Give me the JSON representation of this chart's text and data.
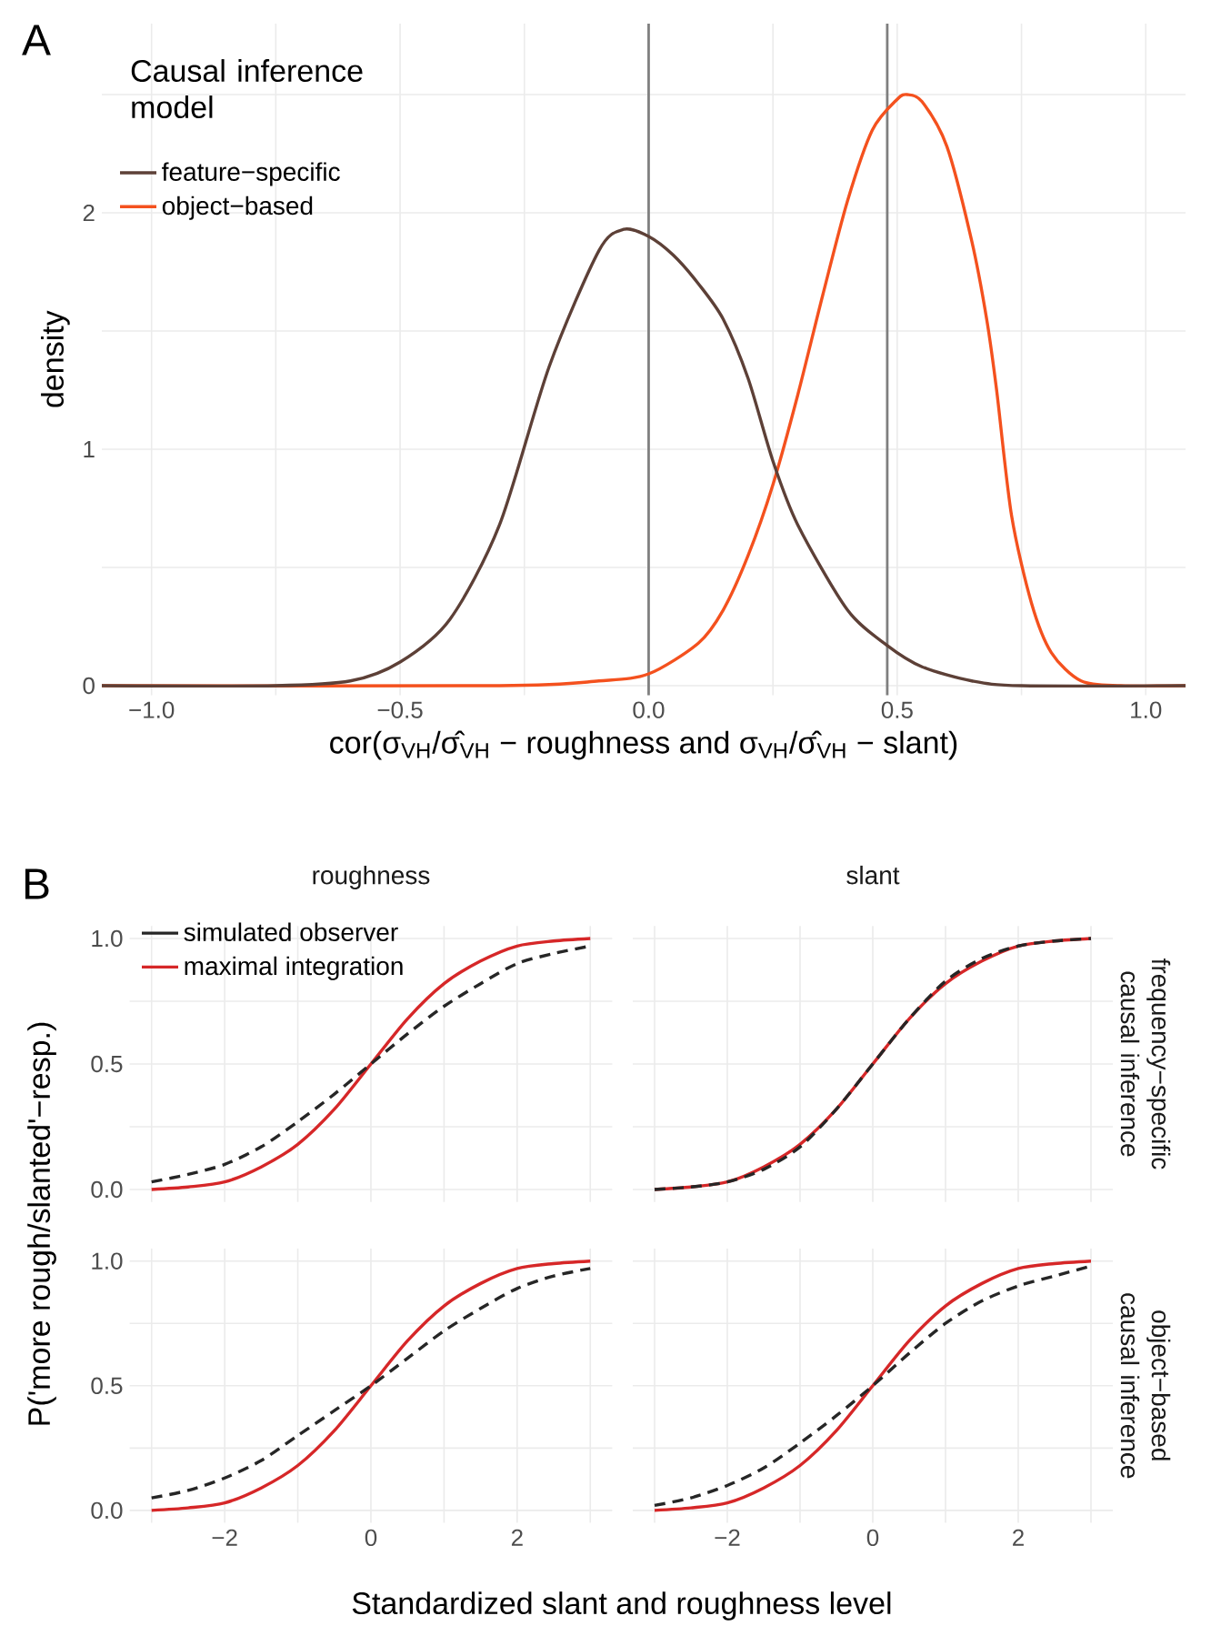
{
  "chart_data": [
    {
      "type": "line",
      "annotations": [
        "A"
      ],
      "xlabel": "cor(σ$_{VH}$/σ̂$_{VH}$  − roughness and σ$_{VH}$/σ̂$_{VH}$  − slant)",
      "ylabel": "density",
      "legend_title": "Causal inference model",
      "legend": "top left",
      "grid": true,
      "xlim": [
        -1.1,
        1.08
      ],
      "ylim": [
        -0.04,
        2.8
      ],
      "xticks": [
        {
          "value": -1,
          "label": "−1.0"
        },
        {
          "value": -0.75,
          "label": null
        },
        {
          "value": -0.5,
          "label": "−0.5"
        },
        {
          "value": -0.25,
          "label": null
        },
        {
          "value": 0,
          "label": "0.0"
        },
        {
          "value": 0.25,
          "label": null
        },
        {
          "value": 0.5,
          "label": "0.5"
        },
        {
          "value": 0.75,
          "label": null
        },
        {
          "value": 1,
          "label": "1.0"
        }
      ],
      "yticks": [
        0,
        {
          "value": 0.5,
          "label": null
        },
        1,
        {
          "value": 1.5,
          "label": null
        },
        2,
        {
          "value": 2.5,
          "label": null
        }
      ],
      "ref_lines": [
        {
          "axis": "x",
          "value": 0,
          "color": "#7f7f7f"
        },
        {
          "axis": "x",
          "value": 0.48,
          "color": "#7f7f7f"
        }
      ],
      "series": [
        {
          "name": "feature−specific",
          "color": "#5d4037",
          "x": [
            -1.1,
            -0.75,
            -0.6,
            -0.5,
            -0.4,
            -0.3,
            -0.2,
            -0.1,
            -0.05,
            0,
            0.05,
            0.1,
            0.15,
            0.2,
            0.25,
            0.3,
            0.4,
            0.48,
            0.55,
            0.65,
            0.75,
            1.08
          ],
          "values": [
            0,
            0,
            0.02,
            0.1,
            0.28,
            0.68,
            1.35,
            1.84,
            1.93,
            1.9,
            1.82,
            1.7,
            1.55,
            1.3,
            0.95,
            0.68,
            0.32,
            0.17,
            0.08,
            0.02,
            0,
            0
          ]
        },
        {
          "name": "object−based",
          "color": "#f4511e",
          "x": [
            -1.1,
            -0.3,
            -0.1,
            0,
            0.1,
            0.15,
            0.2,
            0.25,
            0.3,
            0.35,
            0.4,
            0.45,
            0.5,
            0.52,
            0.55,
            0.6,
            0.65,
            0.68,
            0.7,
            0.73,
            0.77,
            0.81,
            0.87,
            0.95,
            1.08
          ],
          "values": [
            0,
            0,
            0.02,
            0.05,
            0.18,
            0.32,
            0.55,
            0.85,
            1.23,
            1.65,
            2.05,
            2.35,
            2.48,
            2.5,
            2.47,
            2.28,
            1.88,
            1.55,
            1.25,
            0.72,
            0.35,
            0.14,
            0.02,
            0,
            0
          ]
        }
      ]
    },
    {
      "type": "line",
      "annotations": [
        "B"
      ],
      "title": "roughness",
      "ylabel": "P('more rough/slanted'−resp.)",
      "legend": "top left",
      "grid": true,
      "tick_labels": "y",
      "xlim": [
        -3.3,
        3.3
      ],
      "ylim": [
        -0.05,
        1.05
      ],
      "xticks": [
        {
          "value": -3,
          "label": null
        },
        {
          "value": -2,
          "label": null
        },
        {
          "value": -1,
          "label": null
        },
        {
          "value": 0,
          "label": null
        },
        {
          "value": 1,
          "label": null
        },
        {
          "value": 2,
          "label": null
        },
        {
          "value": 3,
          "label": null
        }
      ],
      "yticks": [
        {
          "value": 0,
          "label": "0.0"
        },
        {
          "value": 0.25,
          "label": null
        },
        {
          "value": 0.5,
          "label": "0.5"
        },
        {
          "value": 0.75,
          "label": null
        },
        {
          "value": 1,
          "label": "1.0"
        }
      ],
      "x": [
        -3,
        -2.5,
        -2,
        -1.5,
        -1,
        -0.5,
        0,
        0.5,
        1,
        1.5,
        2,
        2.5,
        3
      ],
      "series": [
        {
          "name": "simulated observer",
          "color": "#262626",
          "line_style": "dashed",
          "values": [
            0.03,
            0.06,
            0.1,
            0.17,
            0.27,
            0.38,
            0.5,
            0.62,
            0.73,
            0.82,
            0.9,
            0.94,
            0.97
          ]
        },
        {
          "name": "maximal integration",
          "color": "#d62728",
          "values": [
            0.0,
            0.01,
            0.03,
            0.09,
            0.18,
            0.32,
            0.5,
            0.68,
            0.82,
            0.91,
            0.97,
            0.99,
            1.0
          ]
        }
      ]
    },
    {
      "type": "line",
      "title": "slant",
      "y2label": "frequency−specific causal inference",
      "grid": true,
      "tick_labels": false,
      "xlim": [
        -3.3,
        3.3
      ],
      "ylim": [
        -0.05,
        1.05
      ],
      "xticks": [
        {
          "value": -3,
          "label": null
        },
        {
          "value": -2,
          "label": null
        },
        {
          "value": -1,
          "label": null
        },
        {
          "value": 0,
          "label": null
        },
        {
          "value": 1,
          "label": null
        },
        {
          "value": 2,
          "label": null
        },
        {
          "value": 3,
          "label": null
        }
      ],
      "yticks": [
        {
          "value": 0,
          "label": null
        },
        {
          "value": 0.25,
          "label": null
        },
        {
          "value": 0.5,
          "label": null
        },
        {
          "value": 0.75,
          "label": null
        },
        {
          "value": 1,
          "label": null
        }
      ],
      "x": [
        -3,
        -2.5,
        -2,
        -1.5,
        -1,
        -0.5,
        0,
        0.5,
        1,
        1.5,
        2,
        2.5,
        3
      ],
      "series": [
        {
          "color": "#262626",
          "line_style": "dashed",
          "values": [
            0.0,
            0.01,
            0.03,
            0.08,
            0.17,
            0.32,
            0.5,
            0.68,
            0.83,
            0.92,
            0.97,
            0.99,
            1.0
          ]
        },
        {
          "color": "#d62728",
          "values": [
            0.0,
            0.01,
            0.03,
            0.09,
            0.18,
            0.32,
            0.5,
            0.68,
            0.82,
            0.91,
            0.97,
            0.99,
            1.0
          ]
        }
      ]
    },
    {
      "type": "line",
      "xlabel": "Standardized slant and roughness level",
      "grid": true,
      "xlim": [
        -3.3,
        3.3
      ],
      "ylim": [
        -0.05,
        1.05
      ],
      "xticks": [
        {
          "value": -3,
          "label": null
        },
        {
          "value": -2,
          "label": "−2"
        },
        {
          "value": -1,
          "label": null
        },
        0,
        {
          "value": 1,
          "label": null
        },
        2,
        {
          "value": 3,
          "label": null
        }
      ],
      "yticks": [
        {
          "value": 0,
          "label": "0.0"
        },
        {
          "value": 0.25,
          "label": null
        },
        {
          "value": 0.5,
          "label": "0.5"
        },
        {
          "value": 0.75,
          "label": null
        },
        {
          "value": 1,
          "label": "1.0"
        }
      ],
      "x": [
        -3,
        -2.5,
        -2,
        -1.5,
        -1,
        -0.5,
        0,
        0.5,
        1,
        1.5,
        2,
        2.5,
        3
      ],
      "series": [
        {
          "color": "#262626",
          "line_style": "dashed",
          "values": [
            0.05,
            0.08,
            0.13,
            0.2,
            0.3,
            0.4,
            0.5,
            0.61,
            0.72,
            0.81,
            0.89,
            0.94,
            0.97
          ]
        },
        {
          "color": "#d62728",
          "values": [
            0.0,
            0.01,
            0.03,
            0.09,
            0.18,
            0.32,
            0.5,
            0.68,
            0.82,
            0.91,
            0.97,
            0.99,
            1.0
          ]
        }
      ]
    },
    {
      "type": "line",
      "y2label": "object−based causal inference",
      "grid": true,
      "tick_labels": "x",
      "xlim": [
        -3.3,
        3.3
      ],
      "ylim": [
        -0.05,
        1.05
      ],
      "xticks": [
        {
          "value": -3,
          "label": null
        },
        {
          "value": -2,
          "label": "−2"
        },
        {
          "value": -1,
          "label": null
        },
        0,
        {
          "value": 1,
          "label": null
        },
        2,
        {
          "value": 3,
          "label": null
        }
      ],
      "yticks": [
        {
          "value": 0,
          "label": null
        },
        {
          "value": 0.25,
          "label": null
        },
        {
          "value": 0.5,
          "label": null
        },
        {
          "value": 0.75,
          "label": null
        },
        {
          "value": 1,
          "label": null
        }
      ],
      "x": [
        -3,
        -2.5,
        -2,
        -1.5,
        -1,
        -0.5,
        0,
        0.5,
        1,
        1.5,
        2,
        2.5,
        3
      ],
      "series": [
        {
          "color": "#262626",
          "line_style": "dashed",
          "values": [
            0.02,
            0.05,
            0.1,
            0.17,
            0.27,
            0.38,
            0.5,
            0.63,
            0.75,
            0.84,
            0.9,
            0.94,
            0.98
          ]
        },
        {
          "color": "#d62728",
          "values": [
            0.0,
            0.01,
            0.03,
            0.09,
            0.18,
            0.32,
            0.5,
            0.68,
            0.82,
            0.91,
            0.97,
            0.99,
            1.0
          ]
        }
      ]
    }
  ]
}
